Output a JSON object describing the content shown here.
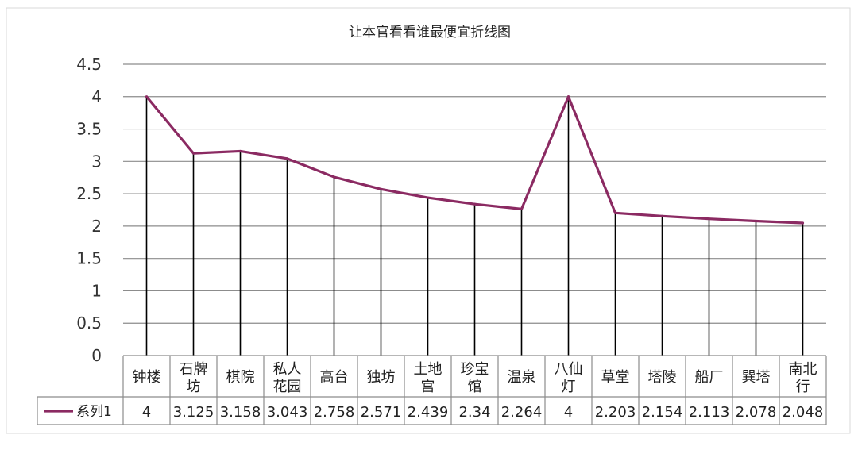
{
  "chart_data": {
    "type": "line",
    "title": "让本官看看谁最便宜折线图",
    "xlabel": "",
    "ylabel": "",
    "categories": [
      [
        "钟楼"
      ],
      [
        "石牌",
        "坊"
      ],
      [
        "棋院"
      ],
      [
        "私人",
        "花园"
      ],
      [
        "高台"
      ],
      [
        "独坊"
      ],
      [
        "土地",
        "宫"
      ],
      [
        "珍宝",
        "馆"
      ],
      [
        "温泉"
      ],
      [
        "八仙",
        "灯"
      ],
      [
        "草堂"
      ],
      [
        "塔陵"
      ],
      [
        "船厂"
      ],
      [
        "巽塔"
      ],
      [
        "南北",
        "行"
      ]
    ],
    "series": [
      {
        "name": "系列1",
        "color": "#8B2A62",
        "values": [
          4,
          3.125,
          3.158,
          3.043,
          2.758,
          2.571,
          2.439,
          2.34,
          2.264,
          4,
          2.203,
          2.154,
          2.113,
          2.078,
          2.048
        ],
        "labels": [
          "4",
          "3.125",
          "3.158",
          "3.043",
          "2.758",
          "2.571",
          "2.439",
          "2.34",
          "2.264",
          "4",
          "2.203",
          "2.154",
          "2.113",
          "2.078",
          "2.048"
        ]
      }
    ],
    "ylim": [
      0,
      4.5
    ],
    "yticks": [
      "0",
      "0.5",
      "1",
      "1.5",
      "2",
      "2.5",
      "3",
      "3.5",
      "4",
      "4.5"
    ],
    "grid": true,
    "drop_lines": true,
    "data_table": true,
    "legend": "in data table"
  }
}
